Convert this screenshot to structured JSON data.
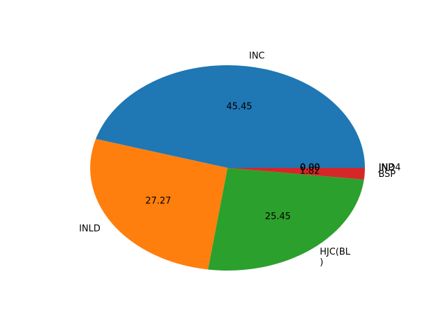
{
  "chart_data": {
    "type": "pie",
    "start_angle_deg": 0,
    "direction": "counterclockwise",
    "value_format": "%.2f",
    "slices": [
      {
        "label": "INC",
        "value": 45.45,
        "color": "#1f77b4"
      },
      {
        "label": "INLD",
        "value": 27.27,
        "color": "#ff7f0e"
      },
      {
        "label": "HJC(BL\n)",
        "value": 25.45,
        "color": "#2ca02c"
      },
      {
        "label": "BSP",
        "value": 1.82,
        "color": "#d62728"
      },
      {
        "label": "IND",
        "value": 0.0,
        "color": "#9467bd"
      },
      {
        "label": "IND",
        "value": 0.0,
        "color": "#8c564b"
      },
      {
        "label": "IND",
        "value": 0.0,
        "color": "#e377c2"
      },
      {
        "label": "JNP",
        "value": 0.0,
        "color": "#7f7f7f"
      },
      {
        "label": "IND",
        "value": 0.0,
        "color": "#bcbd22"
      },
      {
        "label": "IND4",
        "value": 0.0,
        "color": "#17becf"
      }
    ]
  }
}
